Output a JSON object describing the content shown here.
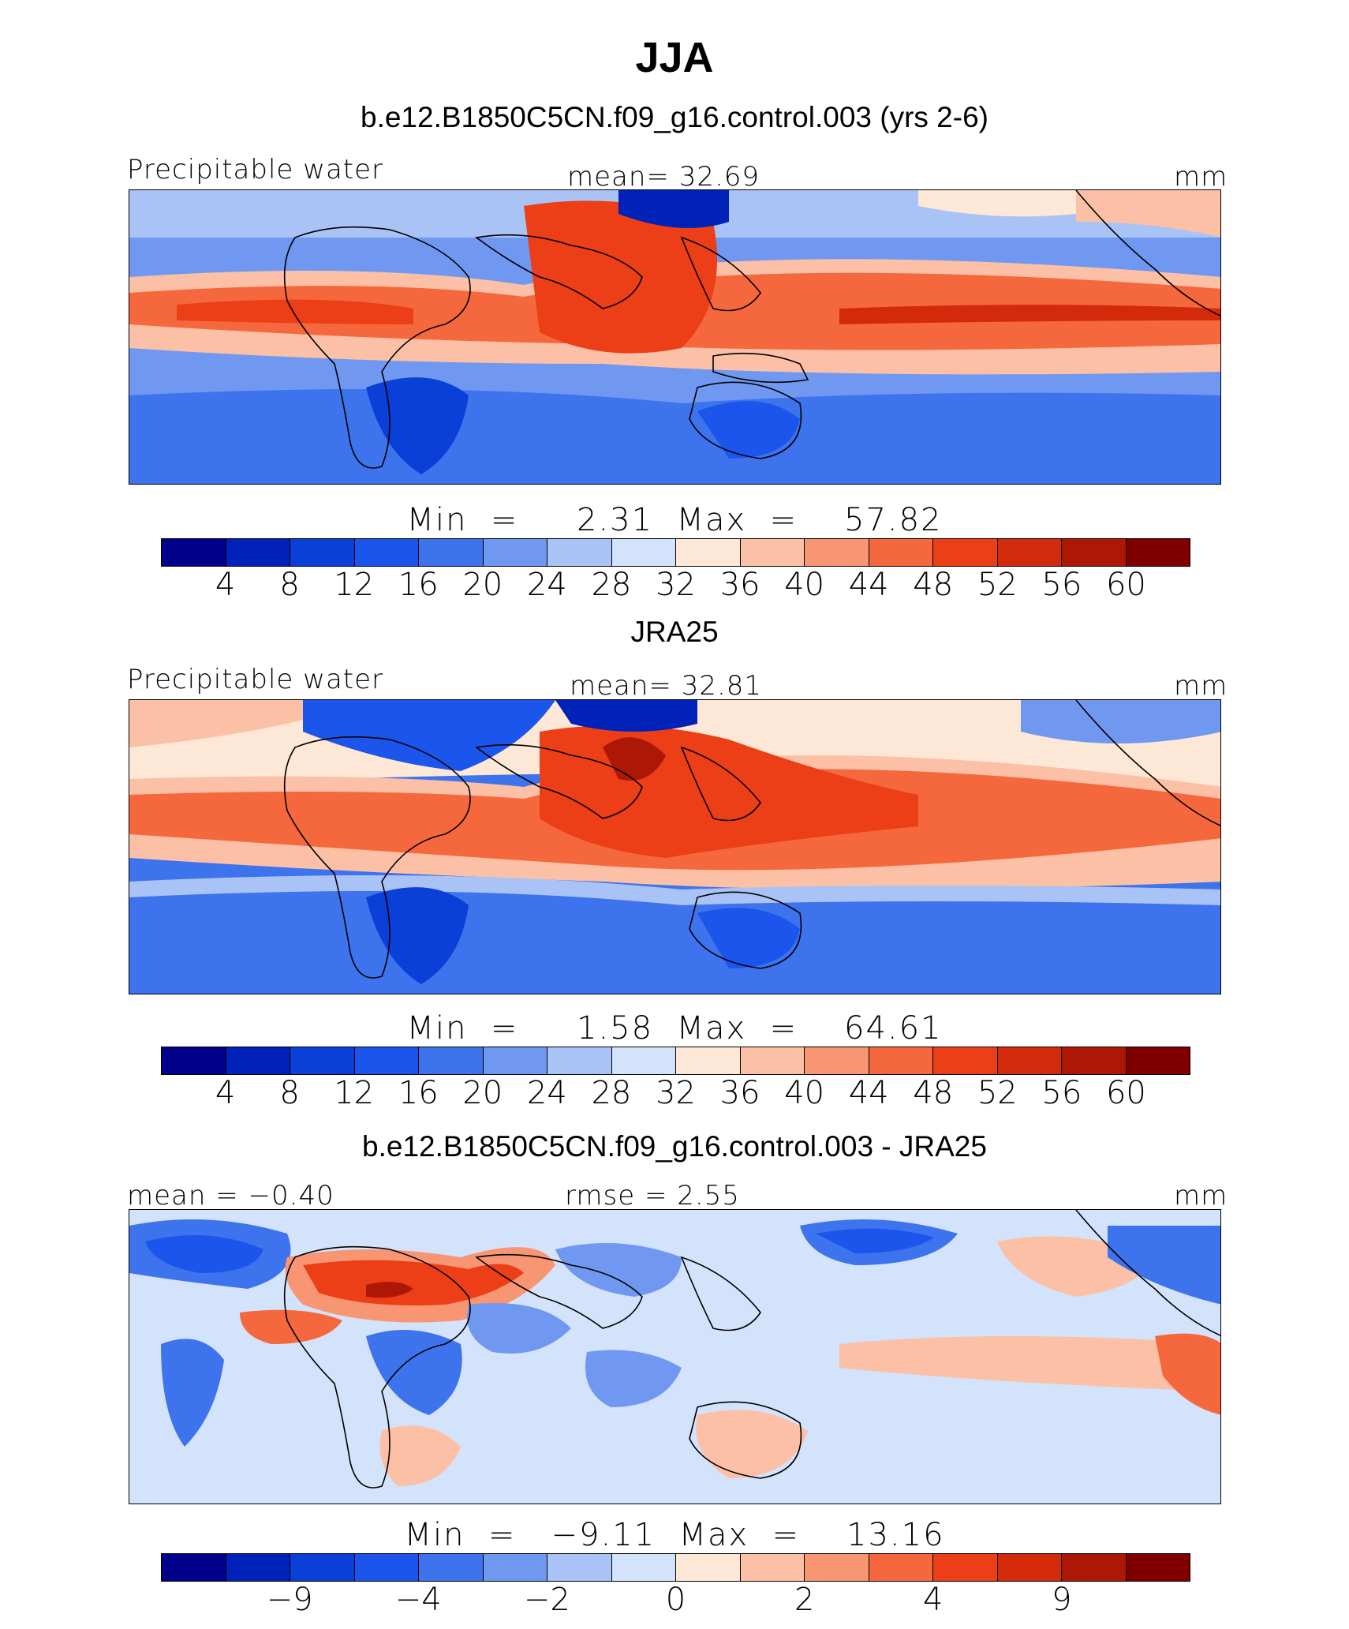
{
  "figure_title": "JJA",
  "chart_data": [
    {
      "type": "heatmap",
      "title": "b.e12.B1850C5CN.f09_g16.control.003 (yrs 2-6)",
      "left_label": "Precipitable water",
      "center_label": "mean=   32.69",
      "units": "mm",
      "min_label": "Min  =     2.31",
      "max_label": "Max  =    57.82",
      "minmax_text": "Min  =     2.31  Max  =    57.82",
      "colorbar_ticks": [
        "4",
        "8",
        "12",
        "16",
        "20",
        "24",
        "28",
        "32",
        "36",
        "40",
        "44",
        "48",
        "52",
        "56",
        "60"
      ],
      "mean": 32.69,
      "min": 2.31,
      "max": 57.82
    },
    {
      "type": "heatmap",
      "title": "JRA25",
      "left_label": "Precipitable water",
      "center_label": "mean=   32.81",
      "units": "mm",
      "minmax_text": "Min  =     1.58  Max  =    64.61",
      "colorbar_ticks": [
        "4",
        "8",
        "12",
        "16",
        "20",
        "24",
        "28",
        "32",
        "36",
        "40",
        "44",
        "48",
        "52",
        "56",
        "60"
      ],
      "mean": 32.81,
      "min": 1.58,
      "max": 64.61
    },
    {
      "type": "heatmap",
      "title": "b.e12.B1850C5CN.f09_g16.control.003 - JRA25",
      "left_label": "mean =   −0.40",
      "center_label": "rmse =     2.55",
      "units": "mm",
      "minmax_text": "Min  =   −9.11  Max  =    13.16",
      "colorbar_ticks": [
        "−9",
        "−4",
        "−2",
        "0",
        "2",
        "4",
        "9"
      ],
      "mean": -0.4,
      "rmse": 2.55,
      "min": -9.11,
      "max": 13.16
    }
  ],
  "colors": [
    "#00008b",
    "#0022b8",
    "#0a3fd8",
    "#1b55ec",
    "#3e73ee",
    "#7098f0",
    "#a9c3f6",
    "#d3e3fb",
    "#fde7d6",
    "#fbc0a5",
    "#f89573",
    "#f5683e",
    "#ec3e17",
    "#d42a0c",
    "#ad1806",
    "#800000"
  ]
}
